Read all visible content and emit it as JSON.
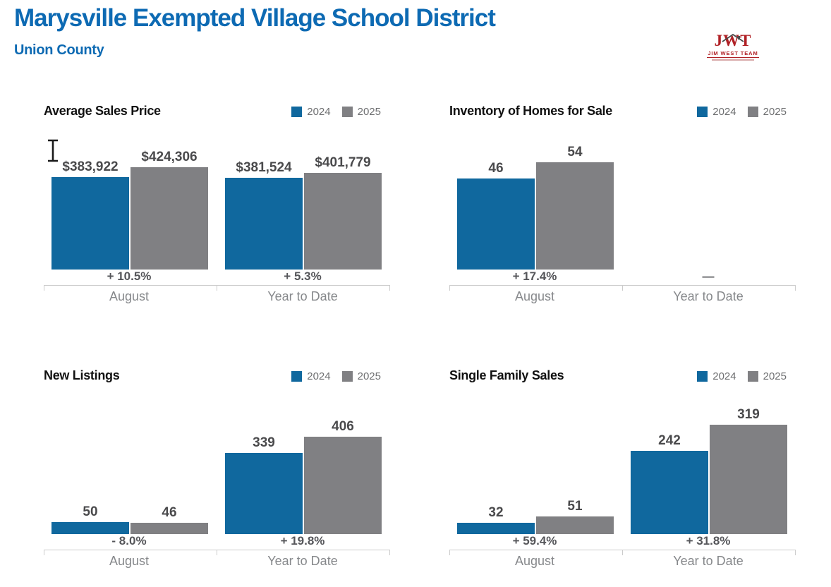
{
  "header": {
    "title": "Marysville Exempted Village School District",
    "subtitle": "Union County"
  },
  "logo": {
    "monogram": "JWT",
    "team_name": "JIM WEST TEAM",
    "roof_icon": "house-roof-icon",
    "color": "#B02025"
  },
  "cursor": {
    "icon": "text-ibeam-cursor"
  },
  "colors": {
    "header_blue": "#0D6AB3",
    "series_2024": "#10689E",
    "series_2025": "#808083",
    "value_label": "#4A4A4C",
    "change_label": "#55565A",
    "category_label": "#86888B",
    "axis_line": "#CCCCCC",
    "legend_text": "#6E6F71"
  },
  "chart_data": [
    {
      "type": "bar",
      "title": "Average Sales Price",
      "categories": [
        "August",
        "Year to Date"
      ],
      "series": [
        {
          "name": "2024",
          "color": "#10689E",
          "values": [
            383922,
            381524
          ]
        },
        {
          "name": "2025",
          "color": "#808083",
          "values": [
            424306,
            401779
          ]
        }
      ],
      "value_labels": [
        [
          "$383,922",
          "$424,306"
        ],
        [
          "$381,524",
          "$401,779"
        ]
      ],
      "change_labels": [
        "+ 10.5%",
        "+ 5.3%"
      ],
      "ylim": [
        0,
        424306
      ],
      "legend_position": "top-right",
      "grid": false
    },
    {
      "type": "bar",
      "title": "Inventory of Homes for Sale",
      "categories": [
        "August",
        "Year to Date"
      ],
      "series": [
        {
          "name": "2024",
          "color": "#10689E",
          "values": [
            46,
            null
          ]
        },
        {
          "name": "2025",
          "color": "#808083",
          "values": [
            54,
            null
          ]
        }
      ],
      "value_labels": [
        [
          "46",
          "54"
        ],
        [
          null,
          null
        ]
      ],
      "change_labels": [
        "+ 17.4%",
        "—"
      ],
      "ylim": [
        0,
        54
      ],
      "legend_position": "top-right",
      "grid": false
    },
    {
      "type": "bar",
      "title": "New Listings",
      "categories": [
        "August",
        "Year to Date"
      ],
      "series": [
        {
          "name": "2024",
          "color": "#10689E",
          "values": [
            50,
            339
          ]
        },
        {
          "name": "2025",
          "color": "#808083",
          "values": [
            46,
            406
          ]
        }
      ],
      "value_labels": [
        [
          "50",
          "46"
        ],
        [
          "339",
          "406"
        ]
      ],
      "change_labels": [
        "- 8.0%",
        "+ 19.8%"
      ],
      "ylim": [
        0,
        406
      ],
      "legend_position": "top-right",
      "grid": false
    },
    {
      "type": "bar",
      "title": "Single Family Sales",
      "categories": [
        "August",
        "Year to Date"
      ],
      "series": [
        {
          "name": "2024",
          "color": "#10689E",
          "values": [
            32,
            242
          ]
        },
        {
          "name": "2025",
          "color": "#808083",
          "values": [
            51,
            319
          ]
        }
      ],
      "value_labels": [
        [
          "32",
          "51"
        ],
        [
          "242",
          "319"
        ]
      ],
      "change_labels": [
        "+ 59.4%",
        "+ 31.8%"
      ],
      "ylim": [
        0,
        319
      ],
      "legend_position": "top-right",
      "grid": false
    }
  ]
}
